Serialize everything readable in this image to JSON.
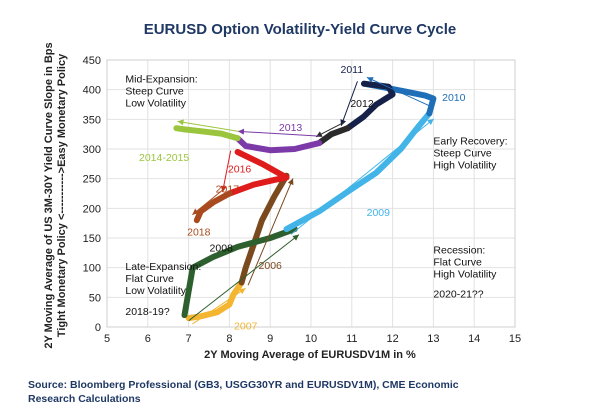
{
  "chart_data": {
    "type": "line",
    "title": "EURUSD Option Volatility-Yield Curve Cycle",
    "xlabel": "2Y Moving Average of EURUSDV1M in %",
    "ylabel_lines": [
      "2Y Moving Average of US 3M-30Y Yield Curve Slope in Bps",
      "Tight Monetary Policy <----------->Easy Monetary Policy"
    ],
    "xlim": [
      5,
      15
    ],
    "ylim": [
      0,
      450
    ],
    "xticks": [
      "5",
      "6",
      "7",
      "8",
      "9",
      "10",
      "11",
      "12",
      "13",
      "14",
      "15"
    ],
    "yticks": [
      "0",
      "50",
      "100",
      "150",
      "200",
      "250",
      "300",
      "350",
      "400",
      "450"
    ],
    "grid": true,
    "series": [
      {
        "name": "2007",
        "color": "#f4b531",
        "points": [
          [
            7.0,
            15
          ],
          [
            7.3,
            18
          ],
          [
            7.7,
            25
          ],
          [
            8.0,
            38
          ],
          [
            8.1,
            55
          ],
          [
            8.3,
            75
          ]
        ]
      },
      {
        "name": "2006",
        "color": "#7a4a1e",
        "points": [
          [
            8.3,
            75
          ],
          [
            8.4,
            100
          ],
          [
            8.6,
            140
          ],
          [
            8.8,
            180
          ],
          [
            9.1,
            220
          ],
          [
            9.4,
            255
          ]
        ]
      },
      {
        "name": "2008",
        "color": "#2e5f2e",
        "points": [
          [
            6.9,
            20
          ],
          [
            7.0,
            60
          ],
          [
            7.1,
            100
          ],
          [
            7.6,
            118
          ],
          [
            8.2,
            135
          ],
          [
            9.0,
            150
          ],
          [
            9.6,
            165
          ]
        ]
      },
      {
        "name": "2009",
        "color": "#42b4e8",
        "points": [
          [
            9.4,
            165
          ],
          [
            10.2,
            195
          ],
          [
            10.9,
            228
          ],
          [
            11.6,
            260
          ],
          [
            12.2,
            300
          ],
          [
            12.6,
            335
          ],
          [
            12.9,
            360
          ]
        ]
      },
      {
        "name": "2010",
        "color": "#1e6fb8",
        "points": [
          [
            12.9,
            360
          ],
          [
            13.0,
            385
          ],
          [
            12.8,
            390
          ],
          [
            12.3,
            397
          ],
          [
            11.7,
            405
          ],
          [
            11.3,
            410
          ]
        ]
      },
      {
        "name": "2011",
        "color": "#16214a",
        "points": [
          [
            11.3,
            410
          ],
          [
            11.9,
            405
          ],
          [
            12.0,
            392
          ],
          [
            11.6,
            375
          ],
          [
            11.3,
            355
          ],
          [
            10.9,
            335
          ]
        ]
      },
      {
        "name": "2012",
        "color": "#2a2a2a",
        "points": [
          [
            10.9,
            335
          ],
          [
            10.5,
            325
          ],
          [
            10.2,
            310
          ]
        ]
      },
      {
        "name": "2013",
        "color": "#7b3aa8",
        "points": [
          [
            10.2,
            310
          ],
          [
            9.6,
            300
          ],
          [
            9.0,
            298
          ],
          [
            8.4,
            305
          ],
          [
            8.2,
            318
          ]
        ]
      },
      {
        "name": "2014-2015",
        "color": "#9bc53d",
        "points": [
          [
            8.2,
            318
          ],
          [
            7.8,
            326
          ],
          [
            7.3,
            330
          ],
          [
            6.9,
            333
          ],
          [
            6.7,
            335
          ]
        ]
      },
      {
        "name": "2016",
        "color": "#e01b1b",
        "points": [
          [
            8.2,
            295
          ],
          [
            8.8,
            275
          ],
          [
            9.4,
            252
          ],
          [
            9.1,
            248
          ],
          [
            8.6,
            240
          ],
          [
            8.0,
            225
          ]
        ]
      },
      {
        "name": "2017",
        "color": "#a94a1e",
        "points": [
          [
            8.0,
            225
          ],
          [
            7.6,
            210
          ],
          [
            7.3,
            195
          ],
          [
            7.2,
            180
          ]
        ]
      }
    ],
    "year_labels": [
      {
        "text": "2011",
        "x": 11.0,
        "y": 428,
        "color": "#16214a"
      },
      {
        "text": "2010",
        "x": 13.5,
        "y": 381,
        "color": "#1e6fb8"
      },
      {
        "text": "2012",
        "x": 11.25,
        "y": 371,
        "color": "#111111"
      },
      {
        "text": "2013",
        "x": 9.5,
        "y": 330,
        "color": "#7b3aa8"
      },
      {
        "text": "2014-2015",
        "x": 6.4,
        "y": 280,
        "color": "#9bc53d"
      },
      {
        "text": "2016",
        "x": 8.25,
        "y": 260,
        "color": "#e01b1b"
      },
      {
        "text": "2017",
        "x": 7.95,
        "y": 227,
        "color": "#a94a1e"
      },
      {
        "text": "2009",
        "x": 11.65,
        "y": 187,
        "color": "#42b4e8"
      },
      {
        "text": "2018",
        "x": 7.25,
        "y": 154,
        "color": "#a94a1e"
      },
      {
        "text": "2008",
        "x": 7.8,
        "y": 127,
        "color": "#111111"
      },
      {
        "text": "2006",
        "x": 9.0,
        "y": 98,
        "color": "#7a4a1e"
      },
      {
        "text": "2007",
        "x": 8.4,
        "y": -4,
        "color": "#f4b531"
      }
    ],
    "annotations": [
      {
        "lines": [
          "Mid-Expansion:",
          "Steep Curve",
          "Low Volatility"
        ],
        "x": 5.45,
        "y": 412
      },
      {
        "lines": [
          "Early Recovery:",
          "Steep Curve",
          "High Volatility"
        ],
        "x": 13.0,
        "y": 308
      },
      {
        "lines": [
          "Recession:",
          "Flat Curve",
          "High Volatility"
        ],
        "x": 13.0,
        "y": 124
      },
      {
        "lines": [
          "Late-Expansion:",
          "Flat Curve",
          "Low Volatility"
        ],
        "x": 5.45,
        "y": 96
      },
      {
        "lines": [
          "2020-21??"
        ],
        "x": 13.0,
        "y": 50
      },
      {
        "lines": [
          "2018-19?"
        ],
        "x": 5.45,
        "y": 20
      }
    ]
  },
  "source_lines": [
    "Source: Bloomberg Professional (GB3, USGG30YR and EURUSDV1M), CME Economic",
    "Research Calculations"
  ]
}
